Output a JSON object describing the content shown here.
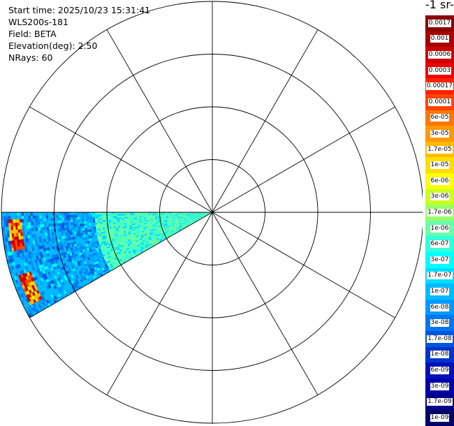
{
  "info": {
    "start_time": "Start time: 2025/10/23 15:31:41",
    "instrument": "WLS200s-181",
    "field": "Field: BETA",
    "elevation": "Elevation(deg): 2.50",
    "nrays": "NRays: 60"
  },
  "colorbar": {
    "title": "-1 sr-",
    "labels": [
      "0.0017",
      "0.001",
      "0.0006",
      "0.0003",
      "0.00017",
      "0.0001",
      "6e-05",
      "3e-05",
      "1.7e-05",
      "1e-05",
      "6e-06",
      "3e-06",
      "1.7e-06",
      "1e-06",
      "6e-07",
      "3e-07",
      "1.7e-07",
      "1e-07",
      "6e-08",
      "3e-08",
      "1.7e-08",
      "1e-08",
      "6e-09",
      "3e-09",
      "1.7e-09",
      "1e-09"
    ],
    "colors": [
      "#8b0000",
      "#a80000",
      "#cc0000",
      "#ee0000",
      "#ff2200",
      "#ff4400",
      "#ff7700",
      "#ff9900",
      "#ffbb00",
      "#ffdd00",
      "#ffff00",
      "#ccff22",
      "#99ff66",
      "#66ffaa",
      "#33ffdd",
      "#00ffff",
      "#00ddff",
      "#00bbff",
      "#0099ff",
      "#0077ee",
      "#0055dd",
      "#0033cc",
      "#0011bb",
      "#0000aa",
      "#000088",
      "#000066"
    ]
  },
  "chart_data": {
    "type": "polar-ppi",
    "field": "BETA",
    "elevation_deg": 2.5,
    "nrays": 60,
    "rings": 4,
    "spokes_deg_step": 30,
    "sector": {
      "azimuth_start_deg": 240,
      "azimuth_end_deg": 270,
      "dominant_value": "1e-07",
      "near_range_value": "1e-06",
      "outer_edge_value": "6e-05"
    },
    "colorscale": "log"
  }
}
